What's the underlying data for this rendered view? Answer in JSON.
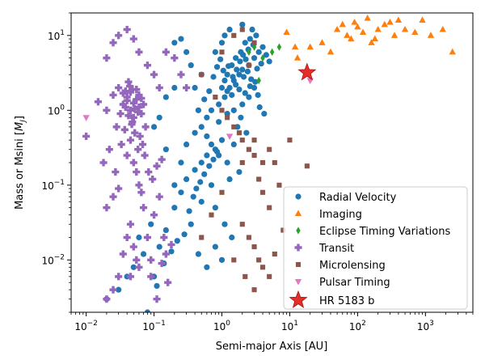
{
  "chart_data": {
    "type": "scatter",
    "x_scale": "log",
    "y_scale": "log",
    "xlabel": "Semi-major Axis [AU]",
    "ylabel": "Mass or Msini [M_J]",
    "xlim": [
      0.006,
      5000
    ],
    "ylim": [
      0.002,
      20
    ],
    "x_ticks": [
      {
        "value": 0.01,
        "base": "10",
        "exp": "−2"
      },
      {
        "value": 0.1,
        "base": "10",
        "exp": "−1"
      },
      {
        "value": 1,
        "base": "10",
        "exp": "0"
      },
      {
        "value": 10,
        "base": "10",
        "exp": "1"
      },
      {
        "value": 100,
        "base": "10",
        "exp": "2"
      },
      {
        "value": 1000,
        "base": "10",
        "exp": "3"
      }
    ],
    "y_ticks": [
      {
        "value": 0.01,
        "base": "10",
        "exp": "−2"
      },
      {
        "value": 0.1,
        "base": "10",
        "exp": "−1"
      },
      {
        "value": 1,
        "base": "10",
        "exp": "0"
      },
      {
        "value": 10,
        "base": "10",
        "exp": "1"
      }
    ],
    "grid": false,
    "legend_position": "lower-right",
    "series": [
      {
        "name": "Radial Velocity",
        "marker": "circle",
        "color": "#1f77b4",
        "points": [
          [
            0.02,
            0.003
          ],
          [
            0.03,
            0.004
          ],
          [
            0.04,
            0.006
          ],
          [
            0.05,
            0.008
          ],
          [
            0.07,
            0.012
          ],
          [
            0.06,
            0.02
          ],
          [
            0.09,
            0.03
          ],
          [
            0.1,
            0.006
          ],
          [
            0.12,
            0.015
          ],
          [
            0.15,
            0.025
          ],
          [
            0.2,
            0.05
          ],
          [
            0.25,
            0.08
          ],
          [
            0.3,
            0.12
          ],
          [
            0.4,
            0.16
          ],
          [
            0.5,
            0.2
          ],
          [
            0.6,
            0.25
          ],
          [
            0.8,
            0.3
          ],
          [
            1.0,
            0.4
          ],
          [
            0.8,
            0.05
          ],
          [
            1.1,
            0.03
          ],
          [
            1.4,
            0.02
          ],
          [
            0.7,
            0.1
          ],
          [
            0.5,
            0.06
          ],
          [
            1.3,
            0.12
          ],
          [
            1.8,
            0.15
          ],
          [
            0.35,
            0.03
          ],
          [
            0.45,
            0.012
          ],
          [
            0.6,
            0.008
          ],
          [
            0.8,
            0.015
          ],
          [
            1.0,
            0.01
          ],
          [
            0.25,
            0.2
          ],
          [
            0.3,
            0.35
          ],
          [
            0.4,
            0.5
          ],
          [
            0.5,
            0.6
          ],
          [
            0.6,
            0.8
          ],
          [
            0.7,
            1.0
          ],
          [
            0.9,
            1.2
          ],
          [
            1.1,
            1.5
          ],
          [
            1.3,
            2.0
          ],
          [
            1.5,
            2.5
          ],
          [
            1.8,
            3.0
          ],
          [
            2.0,
            3.5
          ],
          [
            2.5,
            4.0
          ],
          [
            3.0,
            5.0
          ],
          [
            3.5,
            6.0
          ],
          [
            4.0,
            7.0
          ],
          [
            1.2,
            3.0
          ],
          [
            1.4,
            4.0
          ],
          [
            1.6,
            5.0
          ],
          [
            1.9,
            6.0
          ],
          [
            2.2,
            8.0
          ],
          [
            2.6,
            9.0
          ],
          [
            3.2,
            10.0
          ],
          [
            1.0,
            8.0
          ],
          [
            0.8,
            6.0
          ],
          [
            1.1,
            10.0
          ],
          [
            1.3,
            12.0
          ],
          [
            2.0,
            14.0
          ],
          [
            2.8,
            12.0
          ],
          [
            0.5,
            3.0
          ],
          [
            0.4,
            2.0
          ],
          [
            0.35,
            4.0
          ],
          [
            0.3,
            6.0
          ],
          [
            0.25,
            9.0
          ],
          [
            0.2,
            8.0
          ],
          [
            0.2,
            2.0
          ],
          [
            0.15,
            1.5
          ],
          [
            0.12,
            0.8
          ],
          [
            0.1,
            0.6
          ],
          [
            0.15,
            0.3
          ],
          [
            0.2,
            0.1
          ],
          [
            0.9,
            0.7
          ],
          [
            1.2,
            0.9
          ],
          [
            1.5,
            1.0
          ],
          [
            2.0,
            1.2
          ],
          [
            2.5,
            1.5
          ],
          [
            3.0,
            2.0
          ],
          [
            1.7,
            0.6
          ],
          [
            2.3,
            0.5
          ],
          [
            1.0,
            2.0
          ],
          [
            1.1,
            2.5
          ],
          [
            1.2,
            1.8
          ],
          [
            1.4,
            1.6
          ],
          [
            1.6,
            2.2
          ],
          [
            1.8,
            1.9
          ],
          [
            2.1,
            2.8
          ],
          [
            2.4,
            3.3
          ],
          [
            2.7,
            2.6
          ],
          [
            3.3,
            3.6
          ],
          [
            3.8,
            4.2
          ],
          [
            4.5,
            5.5
          ],
          [
            5.0,
            4.5
          ],
          [
            1.05,
            3.4
          ],
          [
            1.25,
            3.9
          ],
          [
            1.45,
            2.8
          ],
          [
            1.65,
            3.5
          ],
          [
            1.85,
            4.5
          ],
          [
            2.05,
            5.5
          ],
          [
            2.25,
            4.8
          ],
          [
            2.45,
            6.5
          ],
          [
            2.9,
            7.5
          ],
          [
            0.95,
            4.8
          ],
          [
            0.85,
            3.8
          ],
          [
            0.75,
            2.8
          ],
          [
            0.65,
            1.8
          ],
          [
            0.55,
            1.4
          ],
          [
            0.45,
            1.0
          ],
          [
            0.6,
            0.45
          ],
          [
            0.7,
            0.35
          ],
          [
            0.9,
            0.25
          ],
          [
            1.2,
            0.2
          ],
          [
            1.5,
            0.35
          ],
          [
            1.9,
            0.8
          ],
          [
            0.08,
            0.002
          ],
          [
            0.11,
            0.0045
          ],
          [
            0.14,
            0.009
          ],
          [
            0.18,
            0.013
          ],
          [
            0.22,
            0.018
          ],
          [
            0.28,
            0.022
          ],
          [
            0.33,
            0.045
          ],
          [
            0.38,
            0.07
          ],
          [
            0.42,
            0.09
          ],
          [
            0.48,
            0.11
          ],
          [
            0.55,
            0.14
          ],
          [
            0.65,
            0.18
          ],
          [
            0.75,
            0.22
          ],
          [
            0.85,
            0.28
          ],
          [
            3.6,
            1.1
          ],
          [
            4.2,
            0.9
          ],
          [
            2.2,
            1.7
          ],
          [
            2.6,
            2.1
          ],
          [
            3.1,
            2.4
          ],
          [
            3.4,
            1.6
          ]
        ]
      },
      {
        "name": "Imaging",
        "marker": "triangle",
        "color": "#ff7f0e",
        "points": [
          [
            9,
            11
          ],
          [
            12,
            7
          ],
          [
            20,
            7
          ],
          [
            30,
            8
          ],
          [
            40,
            6
          ],
          [
            50,
            12
          ],
          [
            60,
            14
          ],
          [
            70,
            10
          ],
          [
            80,
            9
          ],
          [
            90,
            15
          ],
          [
            100,
            13
          ],
          [
            120,
            11
          ],
          [
            140,
            17
          ],
          [
            160,
            8
          ],
          [
            180,
            9
          ],
          [
            200,
            12
          ],
          [
            250,
            14
          ],
          [
            300,
            15
          ],
          [
            350,
            10
          ],
          [
            400,
            16
          ],
          [
            500,
            12
          ],
          [
            700,
            11
          ],
          [
            900,
            16
          ],
          [
            1200,
            10
          ],
          [
            1800,
            12
          ],
          [
            2500,
            6
          ],
          [
            13,
            5
          ]
        ]
      },
      {
        "name": "Eclipse Timing Variations",
        "marker": "diamond",
        "color": "#2ca02c",
        "points": [
          [
            3.0,
            7.0
          ],
          [
            4.0,
            5.0
          ],
          [
            5.5,
            6.0
          ],
          [
            7.0,
            7.0
          ],
          [
            3.5,
            2.5
          ],
          [
            2.5,
            6.0
          ]
        ]
      },
      {
        "name": "Transit",
        "marker": "plus",
        "color": "#9467bd",
        "points": [
          [
            0.015,
            1.3
          ],
          [
            0.02,
            1.0
          ],
          [
            0.025,
            1.6
          ],
          [
            0.03,
            2.0
          ],
          [
            0.035,
            1.2
          ],
          [
            0.04,
            1.5
          ],
          [
            0.045,
            1.0
          ],
          [
            0.05,
            0.8
          ],
          [
            0.055,
            1.4
          ],
          [
            0.06,
            1.1
          ],
          [
            0.028,
            0.6
          ],
          [
            0.032,
            0.9
          ],
          [
            0.038,
            1.8
          ],
          [
            0.042,
            2.4
          ],
          [
            0.048,
            0.7
          ],
          [
            0.052,
            0.5
          ],
          [
            0.058,
            0.3
          ],
          [
            0.065,
            0.9
          ],
          [
            0.07,
            1.2
          ],
          [
            0.075,
            0.6
          ],
          [
            0.045,
            0.4
          ],
          [
            0.04,
            0.25
          ],
          [
            0.05,
            0.2
          ],
          [
            0.055,
            0.15
          ],
          [
            0.06,
            0.1
          ],
          [
            0.065,
            0.08
          ],
          [
            0.07,
            0.05
          ],
          [
            0.045,
            0.03
          ],
          [
            0.04,
            0.02
          ],
          [
            0.05,
            0.015
          ],
          [
            0.055,
            0.01
          ],
          [
            0.06,
            0.008
          ],
          [
            0.035,
            0.012
          ],
          [
            0.03,
            0.006
          ],
          [
            0.025,
            0.004
          ],
          [
            0.02,
            0.003
          ],
          [
            0.08,
            0.02
          ],
          [
            0.09,
            0.01
          ],
          [
            0.1,
            0.04
          ],
          [
            0.12,
            0.07
          ],
          [
            0.14,
            0.02
          ],
          [
            0.16,
            0.005
          ],
          [
            0.02,
            0.05
          ],
          [
            0.025,
            0.07
          ],
          [
            0.03,
            0.09
          ],
          [
            0.02,
            5.0
          ],
          [
            0.025,
            8.0
          ],
          [
            0.03,
            10.0
          ],
          [
            0.04,
            12.0
          ],
          [
            0.05,
            9.0
          ],
          [
            0.06,
            6.0
          ],
          [
            0.08,
            4.0
          ],
          [
            0.1,
            3.0
          ],
          [
            0.12,
            2.0
          ],
          [
            0.15,
            6.0
          ],
          [
            0.2,
            5.0
          ],
          [
            0.25,
            3.0
          ],
          [
            0.3,
            2.0
          ],
          [
            0.01,
            0.45
          ],
          [
            0.018,
            0.2
          ],
          [
            0.022,
            0.3
          ],
          [
            0.027,
            0.15
          ],
          [
            0.033,
            0.35
          ],
          [
            0.037,
            0.55
          ],
          [
            0.047,
            0.65
          ],
          [
            0.062,
            0.45
          ],
          [
            0.068,
            0.35
          ],
          [
            0.073,
            0.25
          ],
          [
            0.083,
            0.15
          ],
          [
            0.095,
            0.12
          ],
          [
            0.11,
            0.18
          ],
          [
            0.13,
            0.22
          ],
          [
            0.035,
            1.7
          ],
          [
            0.04,
            1.35
          ],
          [
            0.045,
            1.75
          ],
          [
            0.05,
            1.25
          ],
          [
            0.055,
            1.9
          ],
          [
            0.06,
            1.6
          ],
          [
            0.065,
            1.45
          ],
          [
            0.038,
            1.1
          ],
          [
            0.042,
            0.85
          ],
          [
            0.052,
            1.05
          ],
          [
            0.058,
            0.95
          ],
          [
            0.044,
            2.1
          ],
          [
            0.048,
            1.9
          ],
          [
            0.09,
            0.006
          ],
          [
            0.11,
            0.003
          ],
          [
            0.13,
            0.009
          ],
          [
            0.15,
            0.012
          ],
          [
            0.18,
            0.016
          ],
          [
            0.045,
            0.006
          ]
        ]
      },
      {
        "name": "Microlensing",
        "marker": "square",
        "color": "#8c564b",
        "points": [
          [
            0.5,
            3.0
          ],
          [
            0.8,
            1.5
          ],
          [
            1.0,
            1.0
          ],
          [
            1.2,
            0.8
          ],
          [
            1.5,
            0.6
          ],
          [
            1.8,
            0.5
          ],
          [
            2.0,
            0.4
          ],
          [
            2.5,
            0.3
          ],
          [
            3.0,
            0.25
          ],
          [
            3.5,
            0.12
          ],
          [
            4.0,
            0.08
          ],
          [
            5.0,
            0.05
          ],
          [
            2.0,
            0.03
          ],
          [
            2.5,
            0.02
          ],
          [
            3.0,
            0.015
          ],
          [
            3.5,
            0.01
          ],
          [
            4.0,
            0.008
          ],
          [
            5.0,
            0.006
          ],
          [
            6.0,
            0.012
          ],
          [
            8.0,
            0.025
          ],
          [
            1.5,
            0.01
          ],
          [
            2.2,
            0.006
          ],
          [
            3.0,
            0.004
          ],
          [
            18,
            0.18
          ],
          [
            10,
            0.4
          ],
          [
            7,
            0.1
          ],
          [
            6,
            0.2
          ],
          [
            5,
            0.3
          ],
          [
            4,
            0.2
          ],
          [
            3,
            0.4
          ],
          [
            2,
            0.2
          ],
          [
            1,
            0.08
          ],
          [
            0.7,
            0.04
          ],
          [
            0.5,
            0.02
          ],
          [
            1.5,
            10.0
          ],
          [
            2.0,
            12.0
          ],
          [
            3.0,
            8.0
          ],
          [
            1.0,
            6.0
          ],
          [
            2.5,
            4.0
          ]
        ]
      },
      {
        "name": "Pulsar Timing",
        "marker": "triangle-down",
        "color": "#e377c2",
        "points": [
          [
            0.01,
            0.8
          ],
          [
            20,
            2.5
          ],
          [
            1.3,
            0.45
          ]
        ]
      }
    ],
    "highlight": {
      "name": "HR 5183 b",
      "x": 18,
      "y": 3.2,
      "marker": "star",
      "color": "#e03028"
    }
  }
}
